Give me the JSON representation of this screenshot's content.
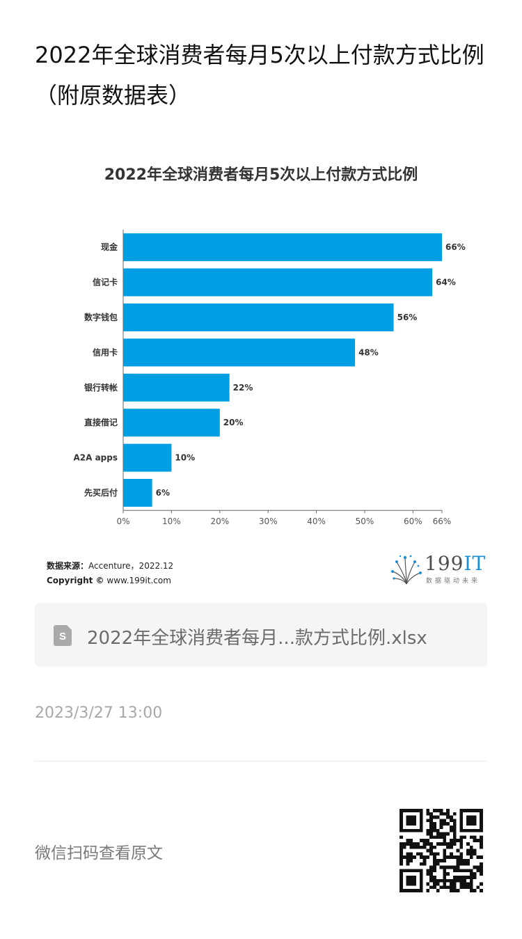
{
  "page": {
    "title": "2022年全球消费者每月5次以上付款方式比例（附原数据表）"
  },
  "chart_data": {
    "type": "bar",
    "orientation": "horizontal",
    "title": "2022年全球消费者每月5次以上付款方式比例",
    "categories": [
      "现金",
      "信记卡",
      "数字钱包",
      "信用卡",
      "银行转帐",
      "直接借记",
      "A2A apps",
      "先买后付"
    ],
    "values": [
      66,
      64,
      56,
      48,
      22,
      20,
      10,
      6
    ],
    "value_labels": [
      "66%",
      "64%",
      "56%",
      "48%",
      "22%",
      "20%",
      "10%",
      "6%"
    ],
    "xticks": [
      0,
      10,
      20,
      30,
      40,
      50,
      60,
      66
    ],
    "xtick_labels": [
      "0%",
      "10%",
      "20%",
      "30%",
      "40%",
      "50%",
      "60%",
      "66%"
    ],
    "xlim": [
      0,
      66
    ],
    "xlabel": "",
    "ylabel": "",
    "grid": false,
    "bar_color": "#009fe3"
  },
  "source": {
    "label": "数据来源：",
    "text": "Accenture，2022.12",
    "copyright_label": "Copyright ©",
    "copyright_text": "www.199it.com"
  },
  "logo": {
    "main": "199",
    "accent": "IT",
    "sub": "数据驱动未来"
  },
  "file": {
    "name": "2022年全球消费者每月...款方式比例.xlsx",
    "icon": "spreadsheet-file-icon"
  },
  "timestamp": "2023/3/27 13:00",
  "wechat": {
    "label": "微信扫码查看原文",
    "icon": "qr-code-icon"
  }
}
